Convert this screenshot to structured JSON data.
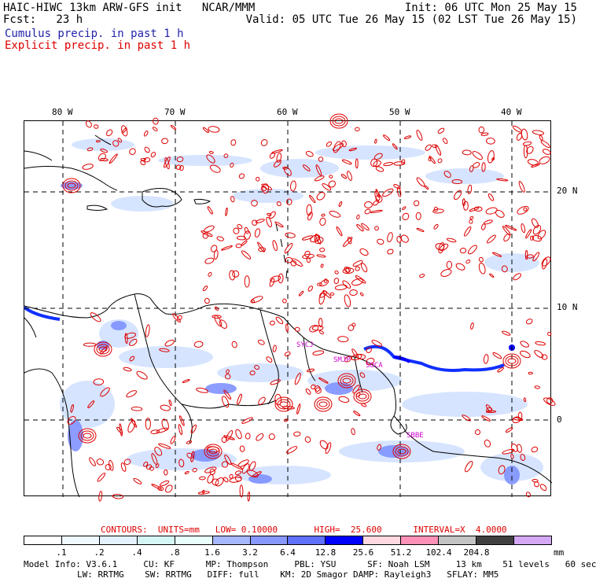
{
  "header": {
    "line1_left": "HAIC-HIWC 13km ARW-GFS init   NCAR/MMM",
    "line1_right": "Init: 06 UTC Mon 25 May 15",
    "line2_left": "Fcst:   23 h",
    "line2_right": "Valid: 05 UTC Tue 26 May 15 (02 LST Tue 26 May 15)",
    "legend_cumulus": "Cumulus precip. in past 1 h",
    "legend_explicit": "Explicit precip. in past 1 h"
  },
  "map": {
    "lon_labels": [
      "80 W",
      "70 W",
      "60 W",
      "50 W",
      "40 W"
    ],
    "lat_labels": [
      "20 N",
      "10 N",
      "0"
    ],
    "stations": [
      "SYCJ",
      "SMJP",
      "SOCA",
      "SBBE"
    ],
    "colors": {
      "explicit": "#dd0000",
      "cumulus_light": "#a8c4ff",
      "cumulus_heavy": "#0000ff",
      "coast": "#000000",
      "station": "#cc00cc"
    }
  },
  "contours": {
    "text": "CONTOURS:  UNITS=mm   LOW= 0.10000       HIGH=  25.600      INTERVAL=X  4.0000"
  },
  "colorbar": {
    "colors": [
      "#ffffff",
      "#f0f8ff",
      "#e4f1ff",
      "#d6f5f5",
      "#e8fffb",
      "#a8b8ff",
      "#8898ff",
      "#6070ff",
      "#0000ff",
      "#ffd8e0",
      "#ff90b8",
      "#c4c4c4",
      "#404040",
      "#d4a8f4"
    ],
    "labels": [
      ".1",
      ".2",
      ".4",
      ".8",
      "1.6",
      "3.2",
      "6.4",
      "12.8",
      "25.6",
      "51.2",
      "102.4",
      "204.8"
    ],
    "units": "mm"
  },
  "footer": {
    "line1": "Model Info: V3.6.1     CU: KF      MP: Thompson     PBL: YSU      SF: Noah LSM     13 km    51 levels   60 sec",
    "line2": "LW: RRTMG    SW: RRTMG   DIFF: full    KM: 2D Smagor DAMP: Rayleigh3   SFLAY: MM5"
  }
}
